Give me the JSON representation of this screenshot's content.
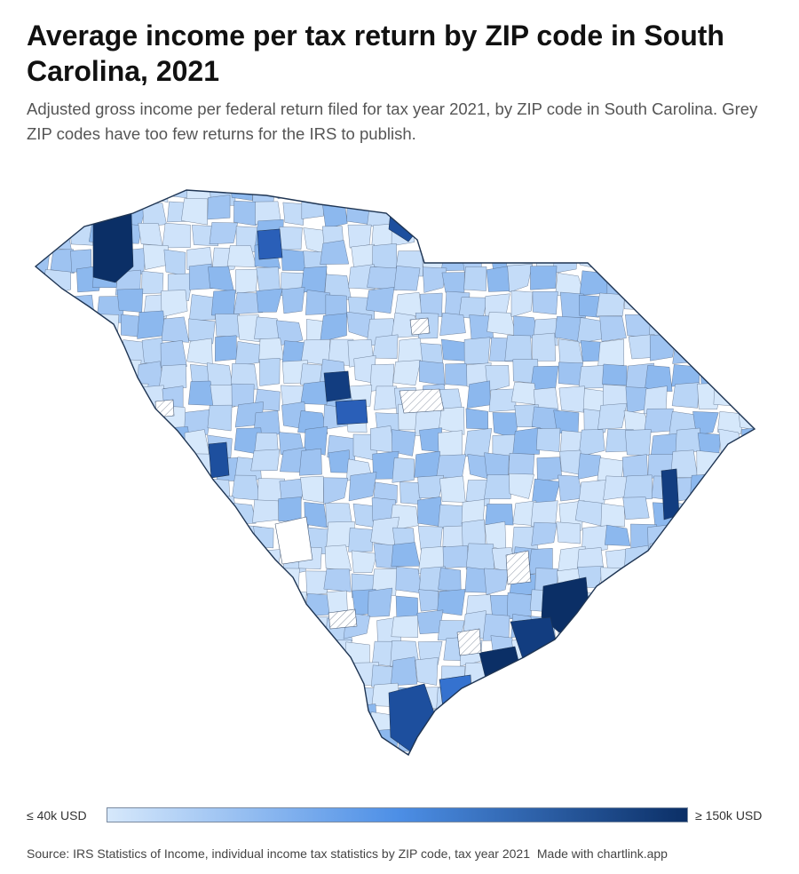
{
  "title": "Average income per tax return by ZIP code in South Carolina, 2021",
  "subtitle": "Adjusted gross income per federal return filed for tax year 2021, by ZIP code in South Carolina. Grey ZIP codes have too few returns for the IRS to publish.",
  "map": {
    "region": "South Carolina",
    "color_scale": {
      "min_label": "≤ 40k USD",
      "max_label": "≥ 150k USD",
      "min_color": "#d6e8fb",
      "mid_color": "#4d8fe6",
      "max_color": "#0b2f66"
    },
    "suppressed_fill": "hatched-white",
    "border_color": "#1f3553"
  },
  "footer": {
    "source": "Source: IRS Statistics of Income, individual income tax statistics by ZIP code, tax year 2021",
    "credit": "Made with chartlink.app"
  }
}
